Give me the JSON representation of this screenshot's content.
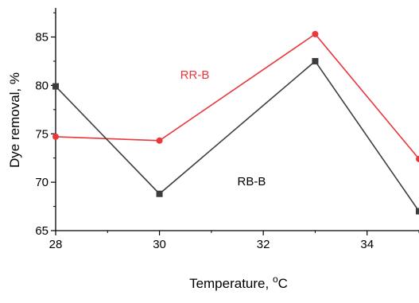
{
  "chart_data": {
    "type": "line",
    "xlabel": "Temperature, ",
    "xlabel_unit_sup": "o",
    "xlabel_unit": "C",
    "ylabel": "Dye removal, %",
    "xlim": [
      28,
      35
    ],
    "ylim": [
      65,
      88
    ],
    "x_ticks": [
      "28",
      "30",
      "32",
      "34"
    ],
    "x_tick_values": [
      28,
      30,
      32,
      34
    ],
    "y_ticks": [
      "65",
      "70",
      "75",
      "80",
      "85"
    ],
    "y_tick_values": [
      65,
      70,
      75,
      80,
      85
    ],
    "grid": false,
    "series": [
      {
        "name": "RR-B",
        "color": "#e8383d",
        "marker": "circle",
        "x": [
          28,
          30,
          33,
          35
        ],
        "values": [
          74.7,
          74.3,
          85.3,
          72.4
        ]
      },
      {
        "name": "RB-B",
        "color": "#3d3d3d",
        "marker": "square",
        "x": [
          28,
          30,
          33,
          35
        ],
        "values": [
          79.9,
          68.8,
          82.5,
          67.0
        ]
      }
    ],
    "annotations": [
      {
        "text": "RR-B",
        "x": 30.4,
        "y": 80.7,
        "color": "#e8383d"
      },
      {
        "text": "RB-B",
        "x": 31.5,
        "y": 69.7,
        "color": "#000000"
      }
    ]
  }
}
